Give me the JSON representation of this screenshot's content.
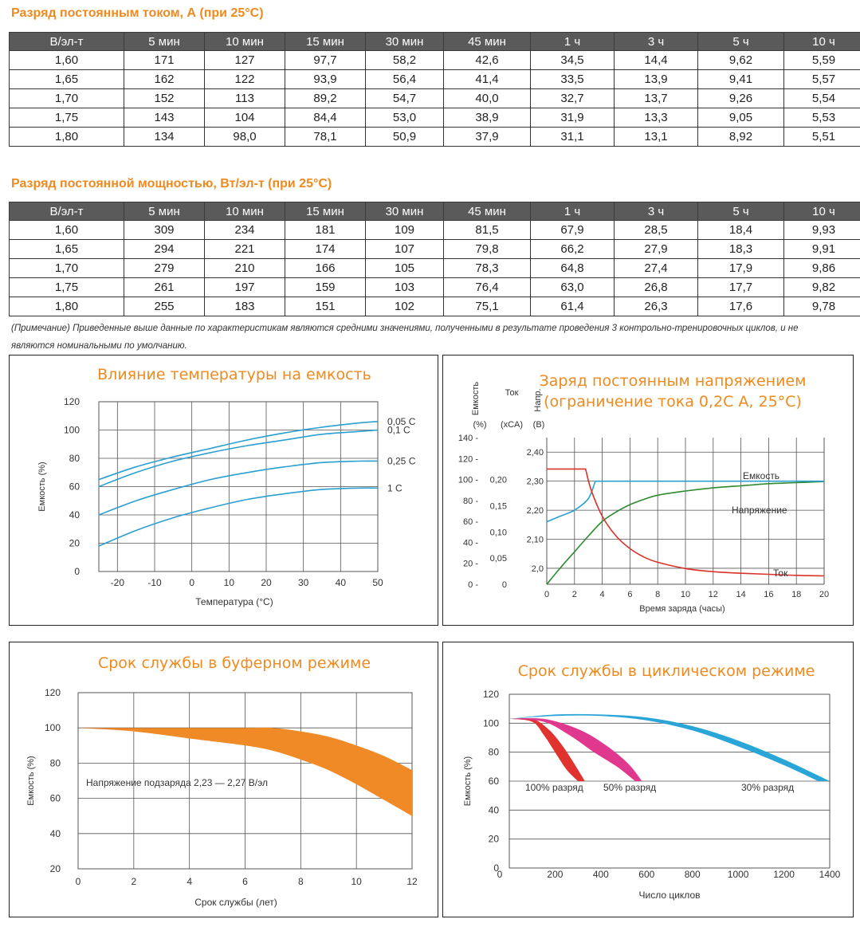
{
  "table_current": {
    "title": "Разряд постоянным током, А (при 25°C)",
    "headers": [
      "В/эл-т",
      "5 мин",
      "10 мин",
      "15 мин",
      "30 мин",
      "45 мин",
      "1 ч",
      "3 ч",
      "5 ч",
      "10 ч"
    ],
    "rows": [
      [
        "1,60",
        "171",
        "127",
        "97,7",
        "58,2",
        "42,6",
        "34,5",
        "14,4",
        "9,62",
        "5,59"
      ],
      [
        "1,65",
        "162",
        "122",
        "93,9",
        "56,4",
        "41,4",
        "33,5",
        "13,9",
        "9,41",
        "5,57"
      ],
      [
        "1,70",
        "152",
        "113",
        "89,2",
        "54,7",
        "40,0",
        "32,7",
        "13,7",
        "9,26",
        "5,54"
      ],
      [
        "1,75",
        "143",
        "104",
        "84,4",
        "53,0",
        "38,9",
        "31,9",
        "13,3",
        "9,05",
        "5,53"
      ],
      [
        "1,80",
        "134",
        "98,0",
        "78,1",
        "50,9",
        "37,9",
        "31,1",
        "13,1",
        "8,92",
        "5,51"
      ]
    ]
  },
  "table_power": {
    "title": "Разряд постоянной мощностью, Вт/эл-т (при 25°C)",
    "headers": [
      "В/эл-т",
      "5 мин",
      "10 мин",
      "15 мин",
      "30 мин",
      "45 мин",
      "1 ч",
      "3 ч",
      "5 ч",
      "10 ч"
    ],
    "rows": [
      [
        "1,60",
        "309",
        "234",
        "181",
        "109",
        "81,5",
        "67,9",
        "28,5",
        "18,4",
        "9,93"
      ],
      [
        "1,65",
        "294",
        "221",
        "174",
        "107",
        "79,8",
        "66,2",
        "27,9",
        "18,3",
        "9,91"
      ],
      [
        "1,70",
        "279",
        "210",
        "166",
        "105",
        "78,3",
        "64,8",
        "27,4",
        "17,9",
        "9,86"
      ],
      [
        "1,75",
        "261",
        "197",
        "159",
        "103",
        "76,4",
        "63,0",
        "26,8",
        "17,7",
        "9,82"
      ],
      [
        "1,80",
        "255",
        "183",
        "151",
        "102",
        "75,1",
        "61,4",
        "26,3",
        "17,6",
        "9,78"
      ]
    ]
  },
  "note": "(Примечание) Приведенные выше данные по характеристикам являются средними значениями, полученными в результате проведения 3 контрольно-тренировочных циклов, и не являются номинальными по умолчанию.",
  "chart_data": [
    {
      "type": "line",
      "title": "Влияние температуры на емкость",
      "xlabel": "Температура (°C)",
      "ylabel": "Емкость (%)",
      "xlim": [
        -25,
        50
      ],
      "ylim": [
        0,
        120
      ],
      "xticks": [
        "-20",
        "-10",
        "0",
        "10",
        "20",
        "30",
        "40",
        "50"
      ],
      "yticks": [
        "0",
        "20",
        "40",
        "60",
        "80",
        "100",
        "120"
      ],
      "series": [
        {
          "name": "0,05 C",
          "x": [
            -25,
            -15,
            -5,
            5,
            15,
            25,
            35,
            45,
            50
          ],
          "y": [
            65,
            74,
            81,
            87,
            93,
            98,
            102,
            105,
            106
          ]
        },
        {
          "name": "0,1 C",
          "x": [
            -25,
            -15,
            -5,
            5,
            15,
            25,
            35,
            45,
            50
          ],
          "y": [
            60,
            70,
            78,
            84,
            89,
            93,
            97,
            99,
            100
          ]
        },
        {
          "name": "0,25 C",
          "x": [
            -25,
            -15,
            -5,
            5,
            15,
            25,
            35,
            45,
            50
          ],
          "y": [
            40,
            50,
            58,
            65,
            70,
            74,
            77,
            78,
            78
          ]
        },
        {
          "name": "1 C",
          "x": [
            -25,
            -15,
            -5,
            5,
            15,
            25,
            35,
            45,
            50
          ],
          "y": [
            18,
            29,
            38,
            45,
            51,
            55,
            58,
            59,
            59
          ]
        }
      ],
      "color": "#2a9fd0",
      "grid": true
    },
    {
      "type": "line",
      "title_lines": [
        "Заряд постоянным напряжением",
        "(ограничение тока 0,2С А, 25°С)"
      ],
      "xlabel": "Время заряда (часы)",
      "axis_headers": [
        "Емкость",
        "Ток",
        "Напр."
      ],
      "axis_units": [
        "(%)",
        "(xCA)",
        "(В)"
      ],
      "xlim": [
        0,
        20
      ],
      "xticks": [
        "0",
        "2",
        "4",
        "6",
        "8",
        "10",
        "12",
        "14",
        "16",
        "18",
        "20"
      ],
      "yticks_capacity": [
        "0",
        "20",
        "40",
        "60",
        "80",
        "100",
        "120",
        "140"
      ],
      "yticks_current": [
        "0",
        "0,05",
        "0,10",
        "0,15",
        "0,20"
      ],
      "yticks_voltage": [
        "2,0",
        "2,10",
        "2,20",
        "2,30",
        "2,40"
      ],
      "series": [
        {
          "name": "Емкость",
          "color": "#2f8a2f",
          "x": [
            0,
            1,
            2,
            3,
            4,
            5,
            6,
            7,
            8,
            10,
            12,
            14,
            16,
            18,
            20
          ],
          "y": [
            0,
            16,
            31,
            46,
            60,
            69,
            76,
            81,
            85,
            89,
            92,
            94,
            96,
            97,
            98
          ]
        },
        {
          "name": "Напряжение",
          "color": "#2a9fd0",
          "x": [
            0,
            1,
            2,
            3,
            3.5,
            20
          ],
          "y": [
            2.16,
            2.18,
            2.2,
            2.24,
            2.3,
            2.3
          ]
        },
        {
          "name": "Ток",
          "color": "#d9322a",
          "x": [
            0,
            2.8,
            3.2,
            4,
            5,
            6,
            7,
            8,
            10,
            12,
            14,
            16,
            18,
            20
          ],
          "y": [
            0.22,
            0.22,
            0.18,
            0.13,
            0.092,
            0.068,
            0.052,
            0.042,
            0.03,
            0.024,
            0.021,
            0.019,
            0.017,
            0.016
          ]
        }
      ],
      "grid": true
    },
    {
      "type": "area",
      "title": "Срок службы в буферном режиме",
      "xlabel": "Срок службы (лет)",
      "ylabel": "Емкость (%)",
      "xlim": [
        0,
        12
      ],
      "ylim": [
        20,
        120
      ],
      "xticks": [
        "0",
        "2",
        "4",
        "6",
        "8",
        "10",
        "12"
      ],
      "yticks": [
        "20",
        "40",
        "60",
        "80",
        "100",
        "120"
      ],
      "annotation": "Напряжение подзаряда 2,23 — 2,27 В/эл",
      "series": [
        {
          "name": "upper",
          "x": [
            0,
            2,
            4,
            6,
            7,
            8,
            9,
            10,
            11,
            12
          ],
          "y": [
            100,
            100,
            100,
            100,
            100,
            98,
            95,
            90,
            84,
            76
          ]
        },
        {
          "name": "lower",
          "x": [
            0,
            2,
            4,
            6,
            7,
            8,
            9,
            10,
            11,
            12
          ],
          "y": [
            100,
            98,
            94,
            90,
            87,
            82,
            76,
            68,
            59,
            50
          ]
        }
      ],
      "color": "#f08a26",
      "grid": true
    },
    {
      "type": "area",
      "title": "Срок службы в циклическом режиме",
      "xlabel": "Число циклов",
      "ylabel": "Емкость (%)",
      "xlim": [
        0,
        1400
      ],
      "ylim": [
        0,
        120
      ],
      "xticks": [
        "0",
        "200",
        "400",
        "600",
        "800",
        "1000",
        "1200",
        "1400"
      ],
      "yticks": [
        "0",
        "20",
        "40",
        "60",
        "80",
        "100",
        "120"
      ],
      "series": [
        {
          "name": "100% разряд",
          "color": "#e0322e",
          "upper": {
            "x": [
              0,
              100,
              170,
              230,
              280,
              330
            ],
            "y": [
              103,
              103,
              96,
              85,
              73,
              60
            ]
          },
          "lower": {
            "x": [
              0,
              100,
              150,
              200,
              250,
              300
            ],
            "y": [
              103,
              101,
              92,
              80,
              68,
              60
            ]
          }
        },
        {
          "name": "50% разряд",
          "color": "#e0388e",
          "upper": {
            "x": [
              0,
              150,
              300,
              420,
              520,
              580
            ],
            "y": [
              103,
              103,
              96,
              85,
              72,
              60
            ]
          },
          "lower": {
            "x": [
              0,
              150,
              260,
              370,
              470,
              550
            ],
            "y": [
              103,
              101,
              92,
              80,
              70,
              60
            ]
          }
        },
        {
          "name": "30% разряд",
          "color": "#2aa5d8",
          "upper": {
            "x": [
              0,
              200,
              400,
              600,
              800,
              1000,
              1200,
              1400
            ],
            "y": [
              103,
              106,
              106,
              104,
              98,
              88,
              75,
              60
            ]
          },
          "lower": {
            "x": [
              0,
              200,
              400,
              600,
              800,
              1000,
              1200,
              1350
            ],
            "y": [
              103,
              105,
              105,
              102,
              95,
              84,
              71,
              60
            ]
          }
        }
      ],
      "grid": true
    }
  ]
}
